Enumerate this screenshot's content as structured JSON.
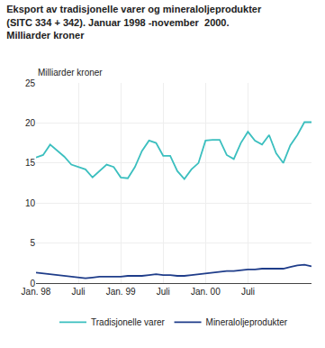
{
  "chart_data": {
    "type": "line",
    "title": "Eksport av tradisjonelle varer og mineraloljeprodukter\n(SITC 334 + 342). Januar 1998 -november  2000.\nMilliarder kroner",
    "ylabel": "Milliarder kroner",
    "categories": [
      "Jan. 98",
      null,
      null,
      null,
      null,
      null,
      "Juli",
      null,
      null,
      null,
      null,
      null,
      "Jan. 99",
      null,
      null,
      null,
      null,
      null,
      "Juli",
      null,
      null,
      null,
      null,
      null,
      "Jan. 00",
      null,
      null,
      null,
      null,
      null,
      "Juli",
      null,
      null,
      null,
      null,
      null,
      null,
      null,
      null,
      null
    ],
    "series": [
      {
        "name": "Tradisjonelle varer",
        "color": "#3bbfbf",
        "values": [
          15.7,
          16.0,
          17.3,
          16.5,
          15.8,
          14.8,
          14.5,
          14.2,
          13.2,
          14.0,
          14.8,
          14.5,
          13.2,
          13.1,
          14.5,
          16.5,
          17.8,
          17.5,
          15.9,
          15.9,
          14.0,
          13.0,
          14.2,
          15.0,
          17.8,
          17.9,
          17.9,
          16.0,
          15.5,
          17.5,
          18.9,
          17.8,
          17.3,
          18.5,
          16.2,
          15.0,
          17.2,
          18.5,
          20.1,
          20.1
        ]
      },
      {
        "name": "Mineraloljeprodukter",
        "color": "#1f3d8a",
        "values": [
          1.3,
          1.2,
          1.1,
          1.0,
          0.9,
          0.8,
          0.7,
          0.6,
          0.7,
          0.8,
          0.8,
          0.8,
          0.8,
          0.9,
          0.9,
          0.9,
          1.0,
          1.1,
          1.0,
          1.0,
          0.9,
          0.9,
          1.0,
          1.1,
          1.2,
          1.3,
          1.4,
          1.5,
          1.5,
          1.6,
          1.7,
          1.7,
          1.8,
          1.8,
          1.8,
          1.8,
          2.0,
          2.2,
          2.3,
          2.1
        ]
      }
    ],
    "ylim": [
      0,
      25
    ],
    "yticks": [
      0,
      5,
      10,
      15,
      20,
      25
    ],
    "grid": true,
    "legend": "bottom"
  }
}
